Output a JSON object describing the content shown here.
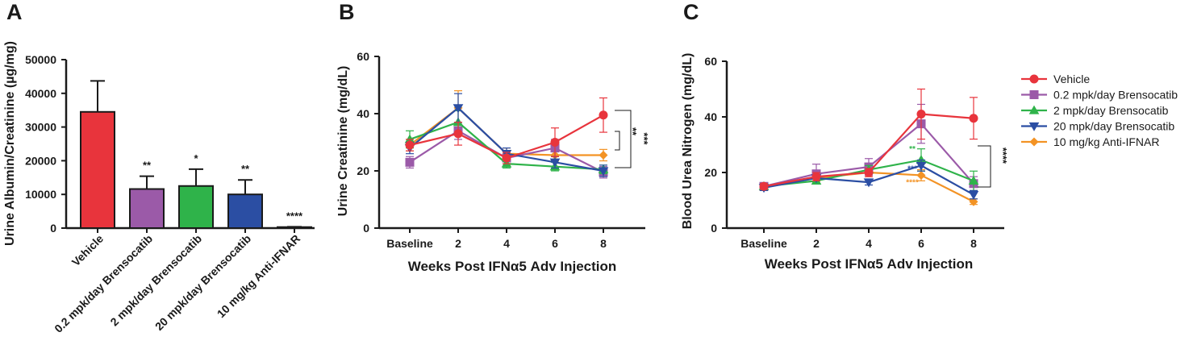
{
  "colors": {
    "vehicle": "#e8343c",
    "brenso_02": "#9b5aa8",
    "brenso_2": "#2fb34a",
    "brenso_20": "#2b4ea3",
    "anti_ifnar": "#f39325"
  },
  "chart_data": [
    {
      "id": "A",
      "panel_label": "A",
      "type": "bar",
      "ylabel": "Urine Albumin/Creatinine (µg/mg)",
      "ylim": [
        0,
        50000
      ],
      "yticks": [
        "0",
        "10000",
        "20000",
        "30000",
        "40000",
        "50000"
      ],
      "categories": [
        "Vehicle",
        "0.2 mpk/day Brensocatib",
        "2 mpk/day Brensocatib",
        "20 mpk/day Brensocatib",
        "10 mg/kg Anti-IFNAR"
      ],
      "values": [
        34500,
        11600,
        12500,
        10000,
        300
      ],
      "errors": [
        9200,
        3800,
        5000,
        4300,
        100
      ],
      "significance": [
        "",
        "**",
        "*",
        "**",
        "****"
      ]
    },
    {
      "id": "B",
      "panel_label": "B",
      "type": "line",
      "xlabel": "Weeks Post IFNα5 Adv Injection",
      "ylabel": "Urine Creatinine (mg/dL)",
      "ylim": [
        0,
        60
      ],
      "yticks": [
        "0",
        "20",
        "40",
        "60"
      ],
      "categories": [
        "Baseline",
        "2",
        "4",
        "6",
        "8"
      ],
      "series": [
        {
          "name": "10 mg/kg Anti-IFNAR",
          "color_key": "anti_ifnar",
          "marker": "diamond",
          "values": [
            29,
            42,
            26,
            25.5,
            25.5
          ],
          "errors": [
            2,
            6,
            2,
            2,
            2
          ]
        },
        {
          "name": "0.2 mpk/day Brensocatib",
          "color_key": "brenso_02",
          "marker": "square",
          "values": [
            23,
            34,
            24.5,
            28,
            19.5
          ],
          "errors": [
            2,
            3,
            2,
            3,
            2
          ]
        },
        {
          "name": "2 mpk/day Brensocatib",
          "color_key": "brenso_2",
          "marker": "triangle-up",
          "values": [
            31,
            37,
            22.5,
            21.5,
            20.5
          ],
          "errors": [
            3,
            4,
            1.5,
            1.5,
            1.5
          ]
        },
        {
          "name": "20 mpk/day Brensocatib",
          "color_key": "brenso_20",
          "marker": "triangle-down",
          "values": [
            28,
            42,
            26,
            23,
            20
          ],
          "errors": [
            2,
            5,
            2,
            2,
            2
          ]
        },
        {
          "name": "Vehicle",
          "color_key": "vehicle",
          "marker": "circle",
          "values": [
            29,
            33,
            24.5,
            30,
            39.5
          ],
          "errors": [
            2,
            4,
            2,
            5,
            6
          ]
        }
      ],
      "significance": [
        "**",
        "***"
      ]
    },
    {
      "id": "C",
      "panel_label": "C",
      "type": "line",
      "xlabel": "Weeks Post IFNα5 Adv Injection",
      "ylabel": "Blood Urea Nitrogen (mg/dL)",
      "ylim": [
        0,
        60
      ],
      "yticks": [
        "0",
        "20",
        "40",
        "60"
      ],
      "categories": [
        "Baseline",
        "2",
        "4",
        "6",
        "8"
      ],
      "series": [
        {
          "name": "10 mg/kg Anti-IFNAR",
          "color_key": "anti_ifnar",
          "marker": "diamond",
          "values": [
            15,
            18,
            20,
            19,
            9.5
          ],
          "errors": [
            1,
            1.5,
            1.5,
            2,
            1
          ]
        },
        {
          "name": "0.2 mpk/day Brensocatib",
          "color_key": "brenso_02",
          "marker": "square",
          "values": [
            15,
            19.5,
            22,
            37.5,
            16
          ],
          "errors": [
            1,
            3.5,
            3,
            7,
            2.5
          ]
        },
        {
          "name": "2 mpk/day Brensocatib",
          "color_key": "brenso_2",
          "marker": "triangle-up",
          "values": [
            15,
            17,
            21,
            24.5,
            17
          ],
          "errors": [
            1,
            1,
            1.5,
            4,
            3.5
          ]
        },
        {
          "name": "20 mpk/day Brensocatib",
          "color_key": "brenso_20",
          "marker": "triangle-down",
          "values": [
            14.5,
            18,
            16.5,
            22.5,
            12
          ],
          "errors": [
            1,
            1,
            1,
            2,
            1.5
          ]
        },
        {
          "name": "Vehicle",
          "color_key": "vehicle",
          "marker": "circle",
          "values": [
            15,
            18.5,
            20,
            41,
            39.5
          ],
          "errors": [
            1,
            1.5,
            1.5,
            9,
            7.5
          ]
        }
      ],
      "significance": [
        "****"
      ],
      "inline_significance": {
        "brenso_2": "**",
        "brenso_20": "***",
        "anti_ifnar": "****"
      }
    }
  ],
  "legend": [
    {
      "label": "Vehicle",
      "color_key": "vehicle",
      "marker": "circle"
    },
    {
      "label": "0.2 mpk/day Brensocatib",
      "color_key": "brenso_02",
      "marker": "square"
    },
    {
      "label": "2 mpk/day Brensocatib",
      "color_key": "brenso_2",
      "marker": "triangle-up"
    },
    {
      "label": "20 mpk/day Brensocatib",
      "color_key": "brenso_20",
      "marker": "triangle-down"
    },
    {
      "label": "10 mg/kg Anti-IFNAR",
      "color_key": "anti_ifnar",
      "marker": "diamond"
    }
  ]
}
